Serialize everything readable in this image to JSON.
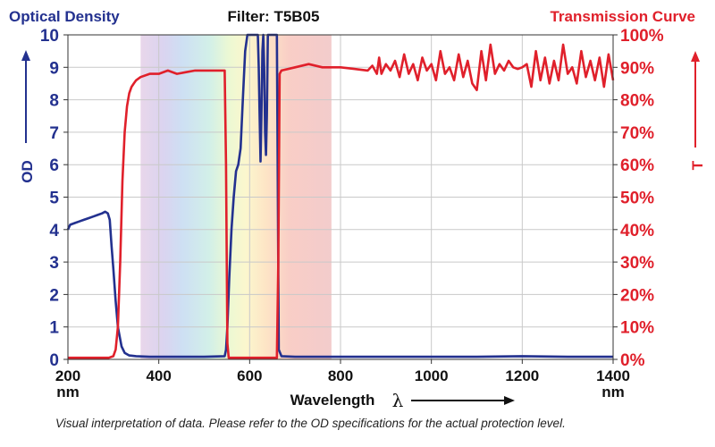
{
  "chart_data": {
    "type": "line",
    "title": "Filter: T5B05",
    "left_header": "Optical Density",
    "right_header": "Transmission Curve",
    "ylabel_left": "OD",
    "ylabel_right": "T",
    "xlabel": "Wavelength",
    "xlabel_symbol": "λ",
    "x_unit": "nm",
    "footnote": "Visual interpretation of data. Please refer to the OD specifications for the actual protection level.",
    "xlim": [
      200,
      1400
    ],
    "ylim_left": [
      0,
      10
    ],
    "ylim_right": [
      0,
      100
    ],
    "x_ticks": [
      "200",
      "400",
      "600",
      "800",
      "1000",
      "1200",
      "1400"
    ],
    "y_left_ticks": [
      "0",
      "1",
      "2",
      "3",
      "4",
      "5",
      "6",
      "7",
      "8",
      "9",
      "10"
    ],
    "y_right_ticks": [
      "0%",
      "10%",
      "20%",
      "30%",
      "40%",
      "50%",
      "60%",
      "70%",
      "80%",
      "90%",
      "100%"
    ],
    "colors": {
      "od": "#23318f",
      "transmission": "#e0202b",
      "header_left": "#23318f",
      "header_right": "#e0202b"
    },
    "spectrum_band": [
      360,
      780
    ],
    "series": [
      {
        "axis": "left",
        "color": "#23318f",
        "x": [
          200,
          205,
          215,
          225,
          235,
          245,
          255,
          265,
          275,
          282,
          288,
          292,
          296,
          300,
          305,
          310,
          318,
          325,
          335,
          350,
          380,
          450,
          500,
          545,
          548,
          551,
          555,
          560,
          565,
          570,
          575,
          580,
          585,
          590,
          595,
          598,
          600,
          610,
          618,
          620,
          622,
          624,
          626,
          628,
          630,
          632,
          634,
          636,
          638,
          640,
          645,
          648,
          650,
          655,
          660,
          662,
          664,
          670,
          700,
          800,
          900,
          1000,
          1100,
          1200,
          1300,
          1400
        ],
        "y": [
          4.0,
          4.15,
          4.2,
          4.25,
          4.3,
          4.35,
          4.4,
          4.45,
          4.5,
          4.55,
          4.5,
          4.3,
          3.5,
          2.8,
          1.8,
          1.0,
          0.4,
          0.2,
          0.12,
          0.1,
          0.08,
          0.08,
          0.08,
          0.1,
          0.3,
          1.0,
          2.5,
          4.0,
          5.0,
          5.8,
          6.0,
          6.5,
          8.0,
          9.5,
          10.0,
          10.0,
          10.0,
          10.0,
          10.0,
          9.0,
          7.5,
          6.1,
          7.5,
          9.5,
          10.0,
          9.0,
          7.0,
          6.3,
          7.5,
          10.0,
          10.0,
          10.0,
          10.0,
          10.0,
          10.0,
          5.0,
          0.3,
          0.1,
          0.08,
          0.08,
          0.08,
          0.08,
          0.08,
          0.1,
          0.08,
          0.08
        ]
      },
      {
        "axis": "right",
        "color": "#e0202b",
        "x": [
          200,
          280,
          290,
          300,
          305,
          310,
          315,
          320,
          325,
          330,
          335,
          340,
          345,
          350,
          360,
          380,
          400,
          420,
          440,
          460,
          480,
          500,
          520,
          540,
          545,
          548,
          551,
          554,
          600,
          640,
          660,
          663,
          666,
          670,
          700,
          730,
          760,
          800,
          830,
          860,
          870,
          880,
          885,
          890,
          900,
          910,
          920,
          930,
          940,
          950,
          960,
          970,
          980,
          990,
          1000,
          1010,
          1020,
          1030,
          1040,
          1050,
          1060,
          1070,
          1080,
          1090,
          1100,
          1110,
          1120,
          1130,
          1140,
          1150,
          1160,
          1170,
          1180,
          1190,
          1200,
          1210,
          1220,
          1230,
          1240,
          1250,
          1260,
          1270,
          1280,
          1290,
          1300,
          1310,
          1320,
          1330,
          1340,
          1350,
          1360,
          1370,
          1380,
          1390,
          1400
        ],
        "y": [
          0.5,
          0.5,
          0.5,
          1,
          3,
          10,
          30,
          55,
          70,
          78,
          82,
          84,
          85,
          86,
          87,
          88,
          88,
          89,
          88,
          88.5,
          89,
          89,
          89,
          89,
          89,
          60,
          5,
          0.5,
          0.5,
          0.5,
          0.5,
          30,
          88,
          89,
          90,
          91,
          90,
          90,
          89.5,
          89,
          90.5,
          88,
          93,
          88,
          91,
          89,
          92,
          87,
          94,
          88,
          91,
          86,
          93,
          89,
          91,
          86,
          95,
          88,
          90,
          86,
          94,
          87,
          92,
          85,
          83,
          95,
          86,
          97,
          88,
          91,
          89,
          92,
          90,
          89.5,
          90,
          91,
          84,
          95,
          86,
          93,
          85,
          92,
          86,
          97,
          88,
          90,
          85,
          95,
          87,
          92,
          86,
          93,
          84,
          94,
          86
        ]
      }
    ]
  }
}
